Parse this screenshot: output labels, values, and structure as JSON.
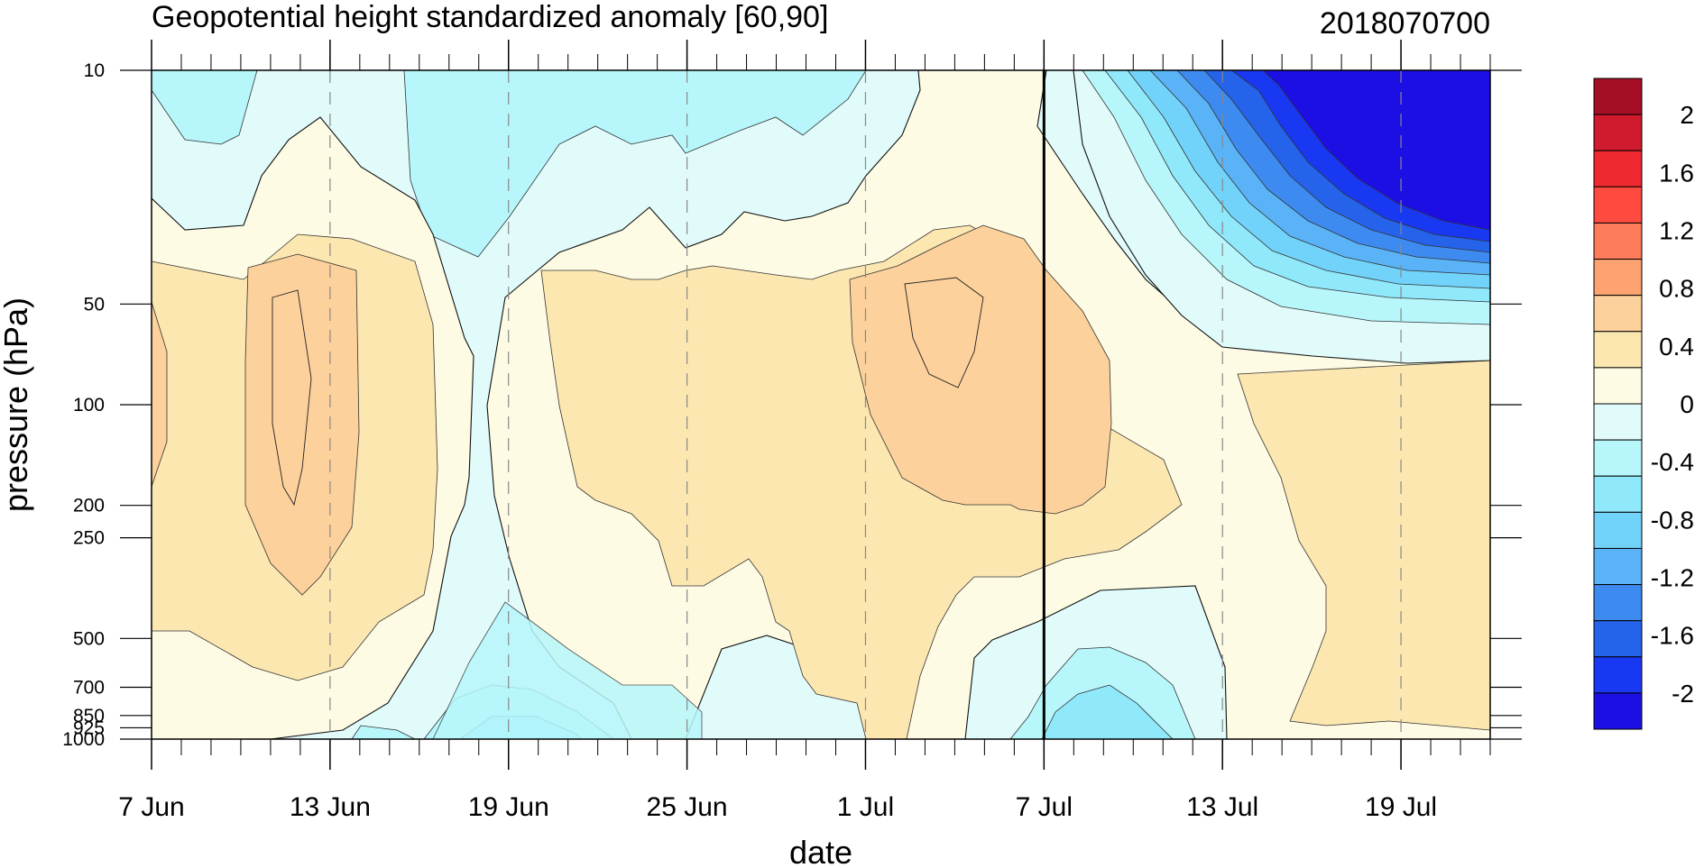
{
  "chart_data": {
    "type": "heatmap",
    "title": "Geopotential height standardized anomaly [60,90]",
    "right_title": "2018070700",
    "xlabel": "date",
    "ylabel": "pressure (hPa)",
    "x_ticks": [
      "7 Jun",
      "13 Jun",
      "19 Jun",
      "25 Jun",
      "1 Jul",
      "7 Jul",
      "13 Jul",
      "19 Jul"
    ],
    "x_start_label": "7 Jun",
    "x_range_days": [
      0,
      45
    ],
    "y_ticks": [
      "10",
      "50",
      "100",
      "200",
      "250",
      "500",
      "700",
      "850",
      "925",
      "1000"
    ],
    "y_range_hpa": [
      1000,
      10
    ],
    "y_scale": "log",
    "marker_line_date": "7 Jul",
    "colorbar_labels": [
      "2",
      "1.6",
      "1.2",
      "0.8",
      "0.4",
      "0",
      "-0.4",
      "-0.8",
      "-1.2",
      "-1.6",
      "-2"
    ],
    "colorbar_colors": [
      "#a50f25",
      "#cf1b2d",
      "#ee2a30",
      "#ff4a40",
      "#fe7b5c",
      "#fda271",
      "#fcd19b",
      "#fce7b1",
      "#fdfbe4",
      "#e1fbfb",
      "#b7f7fb",
      "#90e8fb",
      "#72d3fa",
      "#5ab3f7",
      "#3d8bf1",
      "#2563eb",
      "#1938f1",
      "#1c0fe3"
    ],
    "contour_interval": 0.2,
    "grid": "dashed vertical lines at labelled dates",
    "regions": [
      {
        "level": "-0.2",
        "desc": "negative anomaly upper levels 7-13 Jun"
      },
      {
        "level": "0.6",
        "desc": "positive core ~11-13 Jun, 50-250 hPa"
      },
      {
        "level": "0.6",
        "desc": "positive core ~2-7 Jul, 50-200 hPa"
      },
      {
        "level": "-2.4",
        "desc": "strong negative anomaly upper stratosphere after 13 Jul"
      },
      {
        "level": "0.4",
        "desc": "positive lower troposphere 14-21 Jul"
      }
    ]
  }
}
